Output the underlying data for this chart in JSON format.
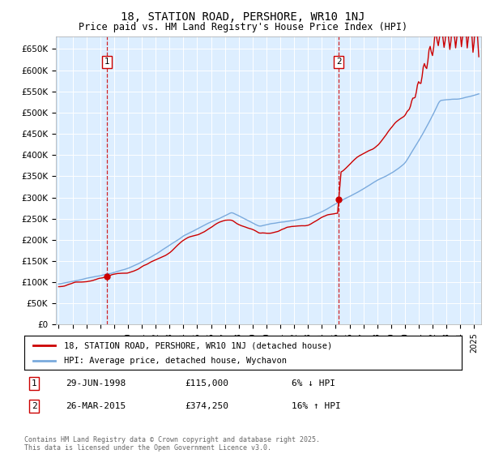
{
  "title": "18, STATION ROAD, PERSHORE, WR10 1NJ",
  "subtitle": "Price paid vs. HM Land Registry's House Price Index (HPI)",
  "legend_line1": "18, STATION ROAD, PERSHORE, WR10 1NJ (detached house)",
  "legend_line2": "HPI: Average price, detached house, Wychavon",
  "annotation1_label": "1",
  "annotation1_date": "29-JUN-1998",
  "annotation1_price": "£115,000",
  "annotation1_hpi": "6% ↓ HPI",
  "annotation1_year": 1998.49,
  "annotation1_price_val": 115000,
  "annotation2_label": "2",
  "annotation2_date": "26-MAR-2015",
  "annotation2_price": "£374,250",
  "annotation2_hpi": "16% ↑ HPI",
  "annotation2_year": 2015.23,
  "annotation2_price_val": 374250,
  "red_color": "#cc0000",
  "blue_color": "#7aaadd",
  "background_color": "#ddeeff",
  "footer": "Contains HM Land Registry data © Crown copyright and database right 2025.\nThis data is licensed under the Open Government Licence v3.0.",
  "ylim": [
    0,
    680000
  ],
  "yticks": [
    0,
    50000,
    100000,
    150000,
    200000,
    250000,
    300000,
    350000,
    400000,
    450000,
    500000,
    550000,
    600000,
    650000
  ],
  "xlim_start": 1994.8,
  "xlim_end": 2025.5
}
